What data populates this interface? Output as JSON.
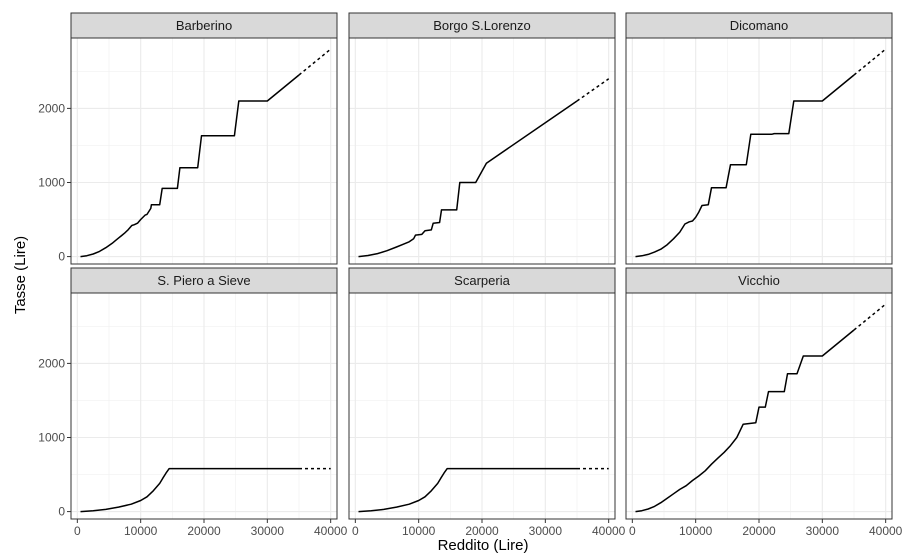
{
  "chart_data": {
    "type": "line",
    "layout": "facet-grid",
    "xlabel": "Reddito (Lire)",
    "ylabel": "Tasse (Lire)",
    "xlim": [
      -1000,
      41000
    ],
    "ylim": [
      -100,
      2950
    ],
    "x_ticks": [
      0,
      10000,
      20000,
      30000,
      40000
    ],
    "x_tick_labels": [
      "0",
      "10000",
      "20000",
      "30000",
      "40000"
    ],
    "y_ticks": [
      0,
      1000,
      2000
    ],
    "y_tick_labels": [
      "0",
      "1000",
      "2000"
    ],
    "grid": true,
    "line_style": {
      "observed": "solid",
      "extrapolated": "dotted"
    },
    "panels": [
      {
        "title": "Barberino",
        "observed": [
          [
            500,
            0
          ],
          [
            1500,
            12
          ],
          [
            2500,
            35
          ],
          [
            3500,
            70
          ],
          [
            4500,
            120
          ],
          [
            5000,
            150
          ],
          [
            5500,
            180
          ],
          [
            6000,
            215
          ],
          [
            6500,
            250
          ],
          [
            7000,
            285
          ],
          [
            7500,
            320
          ],
          [
            8000,
            360
          ],
          [
            8600,
            420
          ],
          [
            9000,
            430
          ],
          [
            9500,
            450
          ],
          [
            10000,
            500
          ],
          [
            10700,
            560
          ],
          [
            11000,
            570
          ],
          [
            11600,
            650
          ],
          [
            11700,
            700
          ],
          [
            13000,
            700
          ],
          [
            13400,
            920
          ],
          [
            15800,
            920
          ],
          [
            16200,
            1200
          ],
          [
            19000,
            1200
          ],
          [
            19600,
            1630
          ],
          [
            24800,
            1630
          ],
          [
            25500,
            2100
          ],
          [
            30000,
            2100
          ],
          [
            35000,
            2450
          ]
        ],
        "extrapolated": [
          [
            35000,
            2450
          ],
          [
            40000,
            2800
          ]
        ]
      },
      {
        "title": "Borgo S.Lorenzo",
        "observed": [
          [
            500,
            0
          ],
          [
            2000,
            15
          ],
          [
            3500,
            40
          ],
          [
            5000,
            80
          ],
          [
            6500,
            130
          ],
          [
            7500,
            165
          ],
          [
            8500,
            200
          ],
          [
            9200,
            240
          ],
          [
            9500,
            290
          ],
          [
            10500,
            300
          ],
          [
            11000,
            350
          ],
          [
            12000,
            360
          ],
          [
            12300,
            450
          ],
          [
            13300,
            460
          ],
          [
            13600,
            630
          ],
          [
            16000,
            630
          ],
          [
            16500,
            1000
          ],
          [
            19000,
            1000
          ],
          [
            20700,
            1260
          ],
          [
            35000,
            2100
          ]
        ],
        "extrapolated": [
          [
            35000,
            2100
          ],
          [
            40000,
            2400
          ]
        ]
      },
      {
        "title": "Dicomano",
        "observed": [
          [
            500,
            0
          ],
          [
            1500,
            10
          ],
          [
            2500,
            30
          ],
          [
            3500,
            60
          ],
          [
            4500,
            100
          ],
          [
            5500,
            160
          ],
          [
            6500,
            240
          ],
          [
            7500,
            330
          ],
          [
            8300,
            440
          ],
          [
            9000,
            470
          ],
          [
            9500,
            480
          ],
          [
            10000,
            530
          ],
          [
            10500,
            600
          ],
          [
            11000,
            690
          ],
          [
            12000,
            700
          ],
          [
            12500,
            930
          ],
          [
            14800,
            930
          ],
          [
            15500,
            1240
          ],
          [
            18000,
            1240
          ],
          [
            18700,
            1650
          ],
          [
            22000,
            1650
          ],
          [
            22400,
            1660
          ],
          [
            24700,
            1660
          ],
          [
            25500,
            2100
          ],
          [
            30000,
            2100
          ],
          [
            35000,
            2450
          ]
        ],
        "extrapolated": [
          [
            35000,
            2450
          ],
          [
            40000,
            2800
          ]
        ]
      },
      {
        "title": "S. Piero a Sieve",
        "observed": [
          [
            500,
            0
          ],
          [
            2500,
            10
          ],
          [
            4500,
            30
          ],
          [
            6500,
            60
          ],
          [
            8500,
            100
          ],
          [
            10000,
            150
          ],
          [
            11000,
            200
          ],
          [
            12000,
            280
          ],
          [
            13000,
            380
          ],
          [
            13500,
            450
          ],
          [
            14000,
            520
          ],
          [
            14500,
            580
          ],
          [
            35000,
            580
          ]
        ],
        "extrapolated": [
          [
            35000,
            580
          ],
          [
            40000,
            580
          ]
        ]
      },
      {
        "title": "Scarperia",
        "observed": [
          [
            500,
            0
          ],
          [
            2500,
            10
          ],
          [
            4500,
            30
          ],
          [
            6500,
            60
          ],
          [
            8500,
            100
          ],
          [
            10000,
            150
          ],
          [
            11000,
            200
          ],
          [
            12000,
            280
          ],
          [
            13000,
            380
          ],
          [
            13500,
            450
          ],
          [
            14000,
            520
          ],
          [
            14500,
            580
          ],
          [
            35000,
            580
          ]
        ],
        "extrapolated": [
          [
            35000,
            580
          ],
          [
            40000,
            580
          ]
        ]
      },
      {
        "title": "Vicchio",
        "observed": [
          [
            500,
            0
          ],
          [
            1500,
            12
          ],
          [
            2500,
            35
          ],
          [
            3500,
            70
          ],
          [
            4500,
            120
          ],
          [
            5500,
            180
          ],
          [
            6500,
            240
          ],
          [
            7500,
            300
          ],
          [
            8500,
            350
          ],
          [
            9500,
            420
          ],
          [
            10500,
            480
          ],
          [
            11500,
            550
          ],
          [
            12500,
            640
          ],
          [
            13500,
            720
          ],
          [
            14500,
            800
          ],
          [
            15500,
            890
          ],
          [
            16500,
            1000
          ],
          [
            17500,
            1180
          ],
          [
            19500,
            1200
          ],
          [
            20000,
            1410
          ],
          [
            21000,
            1410
          ],
          [
            21500,
            1620
          ],
          [
            24000,
            1620
          ],
          [
            24500,
            1860
          ],
          [
            26000,
            1860
          ],
          [
            27000,
            2100
          ],
          [
            30000,
            2100
          ],
          [
            35000,
            2450
          ]
        ],
        "extrapolated": [
          [
            35000,
            2450
          ],
          [
            40000,
            2800
          ]
        ]
      }
    ]
  }
}
